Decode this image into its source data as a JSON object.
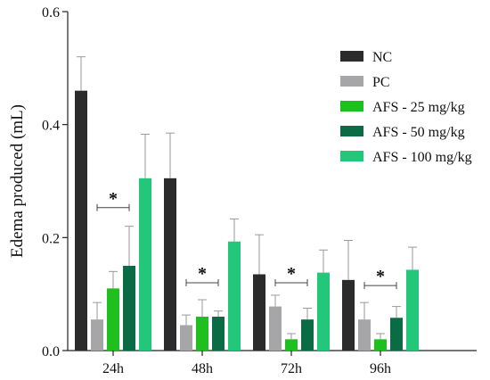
{
  "chart_data": {
    "type": "bar",
    "title": "",
    "xlabel": "",
    "ylabel": "Edema produced (mL)",
    "ylim": [
      0,
      0.6
    ],
    "yticks": [
      "0.0",
      "0.2",
      "0.4",
      "0.6"
    ],
    "categories": [
      "24h",
      "48h",
      "72h",
      "96h"
    ],
    "series": [
      {
        "name": "NC",
        "color": "#2b2b2b",
        "values": [
          0.46,
          0.305,
          0.135,
          0.125
        ],
        "error": [
          0.06,
          0.08,
          0.07,
          0.07
        ]
      },
      {
        "name": "PC",
        "color": "#a6a6a8",
        "values": [
          0.055,
          0.045,
          0.078,
          0.055
        ],
        "error": [
          0.03,
          0.018,
          0.02,
          0.03
        ]
      },
      {
        "name": "AFS - 25 mg/kg",
        "color": "#1fbf1f",
        "values": [
          0.11,
          0.06,
          0.02,
          0.02
        ],
        "error": [
          0.03,
          0.03,
          0.01,
          0.01
        ]
      },
      {
        "name": "AFS - 50 mg/kg",
        "color": "#0b6b45",
        "values": [
          0.15,
          0.06,
          0.055,
          0.058
        ],
        "error": [
          0.07,
          0.01,
          0.02,
          0.02
        ]
      },
      {
        "name": "AFS - 100 mg/kg",
        "color": "#22c77a",
        "values": [
          0.305,
          0.193,
          0.138,
          0.143
        ],
        "error": [
          0.078,
          0.04,
          0.04,
          0.04
        ]
      }
    ],
    "significance": [
      {
        "category": "24h",
        "marker": "*",
        "y": 0.253
      },
      {
        "category": "48h",
        "marker": "*",
        "y": 0.12
      },
      {
        "category": "72h",
        "marker": "*",
        "y": 0.12
      },
      {
        "category": "96h",
        "marker": "*",
        "y": 0.115
      }
    ],
    "legend_position": "top-right",
    "grid": false
  }
}
